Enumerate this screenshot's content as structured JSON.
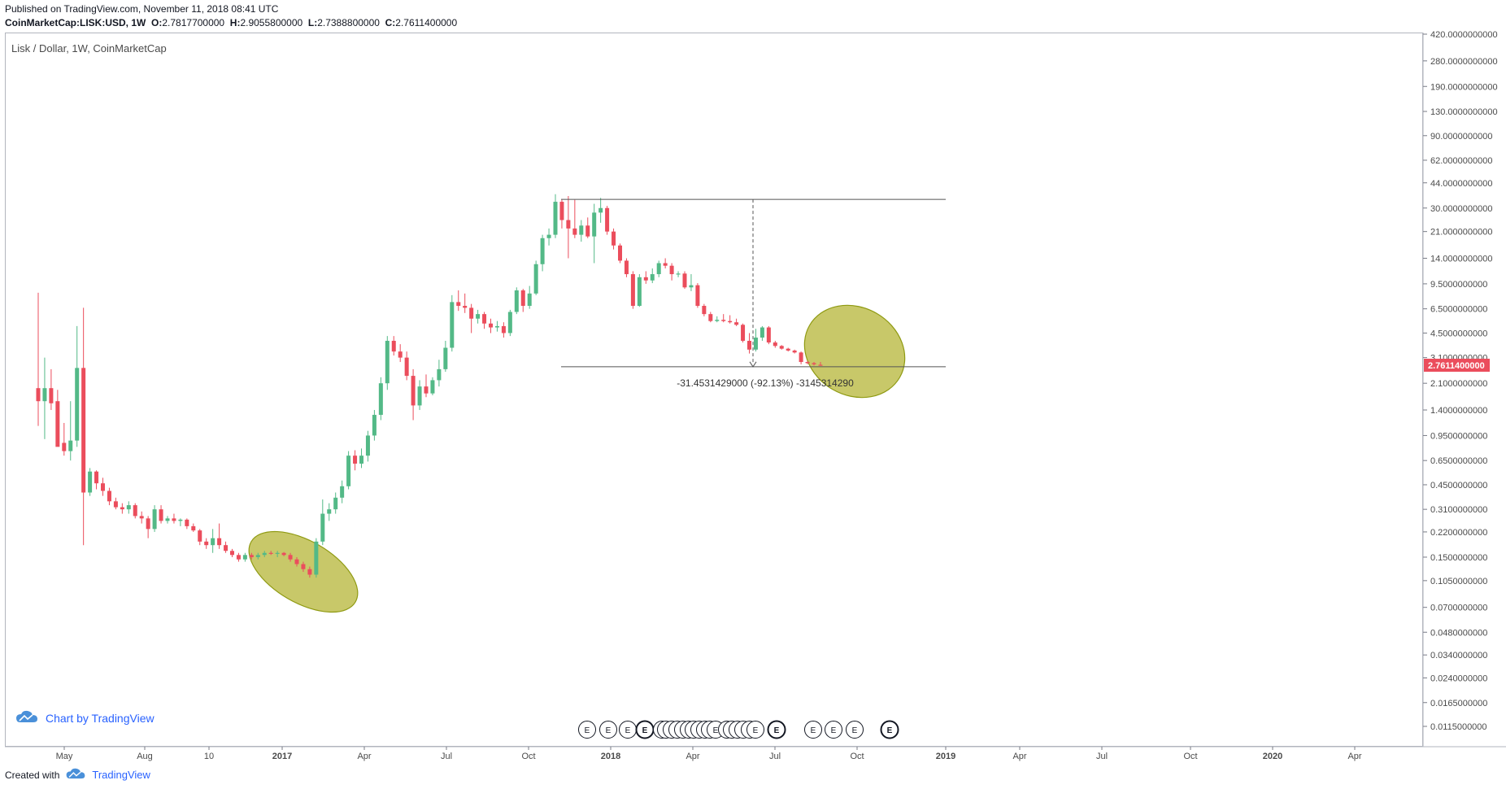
{
  "header": {
    "published": "Published on TradingView.com, November 11, 2018 08:41 UTC",
    "symbol": "CoinMarketCap:LISK:USD, 1W",
    "open_label": "O:",
    "open": "2.7817700000",
    "high_label": "H:",
    "high": "2.9055800000",
    "low_label": "L:",
    "low": "2.7388800000",
    "close_label": "C:",
    "close": "2.7611400000"
  },
  "series_label": "Lisk / Dollar, 1W, CoinMarketCap",
  "watermark": "Chart by TradingView",
  "footer": {
    "created_with": "Created with",
    "brand": "TradingView"
  },
  "colors": {
    "up": "#53b987",
    "down": "#eb4d5c",
    "highlight_fill": "#b5b637",
    "highlight_stroke": "#8f9a12",
    "price_tag": "#eb4d5c"
  },
  "chart_data": {
    "type": "candlestick",
    "title": "Lisk / Dollar, 1W, CoinMarketCap",
    "y_scale": "log",
    "y_ticks": [
      "420.0000000000",
      "280.0000000000",
      "190.0000000000",
      "130.0000000000",
      "90.0000000000",
      "62.0000000000",
      "44.0000000000",
      "30.0000000000",
      "21.0000000000",
      "14.0000000000",
      "9.5000000000",
      "6.5000000000",
      "4.5000000000",
      "3.1000000000",
      "2.1000000000",
      "1.4000000000",
      "0.9500000000",
      "0.6500000000",
      "0.4500000000",
      "0.3100000000",
      "0.2200000000",
      "0.1500000000",
      "0.1050000000",
      "0.0700000000",
      "0.0480000000",
      "0.0340000000",
      "0.0240000000",
      "0.0165000000",
      "0.0115000000"
    ],
    "x_ticks": [
      {
        "label": "May",
        "bold": false
      },
      {
        "label": "Aug",
        "bold": false
      },
      {
        "label": "10",
        "bold": false
      },
      {
        "label": "2017",
        "bold": true
      },
      {
        "label": "Apr",
        "bold": false
      },
      {
        "label": "Jul",
        "bold": false
      },
      {
        "label": "Oct",
        "bold": false
      },
      {
        "label": "2018",
        "bold": true
      },
      {
        "label": "Apr",
        "bold": false
      },
      {
        "label": "Jul",
        "bold": false
      },
      {
        "label": "Oct",
        "bold": false
      },
      {
        "label": "2019",
        "bold": true
      },
      {
        "label": "Apr",
        "bold": false
      },
      {
        "label": "Jul",
        "bold": false
      },
      {
        "label": "Oct",
        "bold": false
      },
      {
        "label": "2020",
        "bold": true
      },
      {
        "label": "Apr",
        "bold": false
      }
    ],
    "last_price": "2.7611400000",
    "measure": {
      "top_price": 34.2,
      "bottom_price": 2.7,
      "label": "-31.4531429000 (-92.13%) -3145314290"
    },
    "earnings_marker": "E",
    "candles": [
      {
        "o": 1.95,
        "h": 8.3,
        "l": 1.1,
        "c": 1.6
      },
      {
        "o": 1.6,
        "h": 3.1,
        "l": 0.9,
        "c": 1.95
      },
      {
        "o": 1.95,
        "h": 2.6,
        "l": 1.4,
        "c": 1.55
      },
      {
        "o": 1.6,
        "h": 1.9,
        "l": 0.85,
        "c": 0.8
      },
      {
        "o": 0.85,
        "h": 1.15,
        "l": 0.7,
        "c": 0.75
      },
      {
        "o": 0.75,
        "h": 1.6,
        "l": 0.65,
        "c": 0.88
      },
      {
        "o": 0.88,
        "h": 5.0,
        "l": 0.8,
        "c": 2.65
      },
      {
        "o": 2.65,
        "h": 6.6,
        "l": 0.18,
        "c": 0.4
      },
      {
        "o": 0.4,
        "h": 0.58,
        "l": 0.38,
        "c": 0.55
      },
      {
        "o": 0.55,
        "h": 0.56,
        "l": 0.42,
        "c": 0.46
      },
      {
        "o": 0.46,
        "h": 0.5,
        "l": 0.38,
        "c": 0.41
      },
      {
        "o": 0.41,
        "h": 0.43,
        "l": 0.33,
        "c": 0.35
      },
      {
        "o": 0.35,
        "h": 0.37,
        "l": 0.31,
        "c": 0.32
      },
      {
        "o": 0.32,
        "h": 0.34,
        "l": 0.29,
        "c": 0.31
      },
      {
        "o": 0.31,
        "h": 0.35,
        "l": 0.29,
        "c": 0.33
      },
      {
        "o": 0.33,
        "h": 0.34,
        "l": 0.27,
        "c": 0.28
      },
      {
        "o": 0.28,
        "h": 0.3,
        "l": 0.25,
        "c": 0.27
      },
      {
        "o": 0.27,
        "h": 0.28,
        "l": 0.2,
        "c": 0.23
      },
      {
        "o": 0.23,
        "h": 0.33,
        "l": 0.22,
        "c": 0.31
      },
      {
        "o": 0.31,
        "h": 0.33,
        "l": 0.25,
        "c": 0.26
      },
      {
        "o": 0.26,
        "h": 0.28,
        "l": 0.25,
        "c": 0.27
      },
      {
        "o": 0.27,
        "h": 0.29,
        "l": 0.25,
        "c": 0.26
      },
      {
        "o": 0.26,
        "h": 0.27,
        "l": 0.24,
        "c": 0.265
      },
      {
        "o": 0.265,
        "h": 0.27,
        "l": 0.23,
        "c": 0.24
      },
      {
        "o": 0.24,
        "h": 0.25,
        "l": 0.22,
        "c": 0.225
      },
      {
        "o": 0.225,
        "h": 0.23,
        "l": 0.18,
        "c": 0.19
      },
      {
        "o": 0.19,
        "h": 0.2,
        "l": 0.17,
        "c": 0.18
      },
      {
        "o": 0.18,
        "h": 0.23,
        "l": 0.16,
        "c": 0.2
      },
      {
        "o": 0.2,
        "h": 0.25,
        "l": 0.17,
        "c": 0.18
      },
      {
        "o": 0.18,
        "h": 0.19,
        "l": 0.16,
        "c": 0.165
      },
      {
        "o": 0.165,
        "h": 0.17,
        "l": 0.15,
        "c": 0.155
      },
      {
        "o": 0.155,
        "h": 0.16,
        "l": 0.14,
        "c": 0.145
      },
      {
        "o": 0.145,
        "h": 0.16,
        "l": 0.14,
        "c": 0.155
      },
      {
        "o": 0.155,
        "h": 0.16,
        "l": 0.145,
        "c": 0.15
      },
      {
        "o": 0.15,
        "h": 0.16,
        "l": 0.145,
        "c": 0.155
      },
      {
        "o": 0.155,
        "h": 0.165,
        "l": 0.15,
        "c": 0.16
      },
      {
        "o": 0.16,
        "h": 0.165,
        "l": 0.155,
        "c": 0.158
      },
      {
        "o": 0.158,
        "h": 0.165,
        "l": 0.15,
        "c": 0.16
      },
      {
        "o": 0.16,
        "h": 0.162,
        "l": 0.152,
        "c": 0.155
      },
      {
        "o": 0.155,
        "h": 0.16,
        "l": 0.14,
        "c": 0.145
      },
      {
        "o": 0.145,
        "h": 0.15,
        "l": 0.13,
        "c": 0.135
      },
      {
        "o": 0.135,
        "h": 0.14,
        "l": 0.12,
        "c": 0.125
      },
      {
        "o": 0.125,
        "h": 0.13,
        "l": 0.11,
        "c": 0.115
      },
      {
        "o": 0.115,
        "h": 0.2,
        "l": 0.11,
        "c": 0.19
      },
      {
        "o": 0.19,
        "h": 0.36,
        "l": 0.18,
        "c": 0.29
      },
      {
        "o": 0.29,
        "h": 0.34,
        "l": 0.26,
        "c": 0.31
      },
      {
        "o": 0.31,
        "h": 0.4,
        "l": 0.29,
        "c": 0.37
      },
      {
        "o": 0.37,
        "h": 0.48,
        "l": 0.34,
        "c": 0.44
      },
      {
        "o": 0.44,
        "h": 0.75,
        "l": 0.42,
        "c": 0.7
      },
      {
        "o": 0.7,
        "h": 0.76,
        "l": 0.56,
        "c": 0.62
      },
      {
        "o": 0.62,
        "h": 0.78,
        "l": 0.58,
        "c": 0.7
      },
      {
        "o": 0.7,
        "h": 1.02,
        "l": 0.64,
        "c": 0.95
      },
      {
        "o": 0.95,
        "h": 1.4,
        "l": 0.88,
        "c": 1.3
      },
      {
        "o": 1.3,
        "h": 2.3,
        "l": 1.2,
        "c": 2.1
      },
      {
        "o": 2.1,
        "h": 4.3,
        "l": 1.9,
        "c": 4.0
      },
      {
        "o": 4.0,
        "h": 4.3,
        "l": 3.2,
        "c": 3.4
      },
      {
        "o": 3.4,
        "h": 3.8,
        "l": 2.9,
        "c": 3.1
      },
      {
        "o": 3.1,
        "h": 3.4,
        "l": 2.2,
        "c": 2.35
      },
      {
        "o": 2.35,
        "h": 2.6,
        "l": 1.2,
        "c": 1.5
      },
      {
        "o": 1.5,
        "h": 2.2,
        "l": 1.4,
        "c": 2.0
      },
      {
        "o": 2.0,
        "h": 2.4,
        "l": 1.7,
        "c": 1.8
      },
      {
        "o": 1.8,
        "h": 2.3,
        "l": 1.75,
        "c": 2.2
      },
      {
        "o": 2.2,
        "h": 3.0,
        "l": 2.0,
        "c": 2.6
      },
      {
        "o": 2.6,
        "h": 4.0,
        "l": 2.5,
        "c": 3.6
      },
      {
        "o": 3.6,
        "h": 8.0,
        "l": 3.4,
        "c": 7.2
      },
      {
        "o": 7.2,
        "h": 8.6,
        "l": 6.3,
        "c": 6.8
      },
      {
        "o": 6.8,
        "h": 8.2,
        "l": 6.1,
        "c": 6.6
      },
      {
        "o": 6.6,
        "h": 7.0,
        "l": 4.5,
        "c": 5.6
      },
      {
        "o": 5.6,
        "h": 6.4,
        "l": 5.2,
        "c": 6.0
      },
      {
        "o": 6.0,
        "h": 6.2,
        "l": 4.8,
        "c": 5.2
      },
      {
        "o": 5.2,
        "h": 5.6,
        "l": 4.5,
        "c": 4.9
      },
      {
        "o": 4.9,
        "h": 5.4,
        "l": 4.6,
        "c": 5.0
      },
      {
        "o": 5.0,
        "h": 5.3,
        "l": 4.2,
        "c": 4.5
      },
      {
        "o": 4.5,
        "h": 6.4,
        "l": 4.3,
        "c": 6.2
      },
      {
        "o": 6.2,
        "h": 9.0,
        "l": 6.0,
        "c": 8.6
      },
      {
        "o": 8.6,
        "h": 8.8,
        "l": 6.2,
        "c": 6.8
      },
      {
        "o": 6.8,
        "h": 9.2,
        "l": 6.5,
        "c": 8.2
      },
      {
        "o": 8.2,
        "h": 13.5,
        "l": 8.0,
        "c": 12.8
      },
      {
        "o": 12.8,
        "h": 20.0,
        "l": 11.5,
        "c": 19.0
      },
      {
        "o": 19.0,
        "h": 22.0,
        "l": 17.0,
        "c": 20.0
      },
      {
        "o": 20.0,
        "h": 37.0,
        "l": 19.0,
        "c": 33.0
      },
      {
        "o": 33.0,
        "h": 34.0,
        "l": 22.0,
        "c": 25.0
      },
      {
        "o": 25.0,
        "h": 36.0,
        "l": 14.0,
        "c": 22.0
      },
      {
        "o": 22.0,
        "h": 34.0,
        "l": 19.0,
        "c": 20.0
      },
      {
        "o": 20.0,
        "h": 25.0,
        "l": 18.0,
        "c": 23.0
      },
      {
        "o": 23.0,
        "h": 26.0,
        "l": 19.0,
        "c": 19.5
      },
      {
        "o": 19.5,
        "h": 32.0,
        "l": 13.0,
        "c": 28.0
      },
      {
        "o": 28.0,
        "h": 35.0,
        "l": 24.0,
        "c": 30.0
      },
      {
        "o": 30.0,
        "h": 31.0,
        "l": 20.0,
        "c": 21.0
      },
      {
        "o": 21.0,
        "h": 22.0,
        "l": 16.0,
        "c": 17.0
      },
      {
        "o": 17.0,
        "h": 17.5,
        "l": 13.0,
        "c": 13.5
      },
      {
        "o": 13.5,
        "h": 14.0,
        "l": 10.5,
        "c": 11.0
      },
      {
        "o": 11.0,
        "h": 11.5,
        "l": 6.5,
        "c": 6.8
      },
      {
        "o": 6.8,
        "h": 11.0,
        "l": 6.7,
        "c": 10.5
      },
      {
        "o": 10.5,
        "h": 11.5,
        "l": 9.5,
        "c": 10.0
      },
      {
        "o": 10.0,
        "h": 12.0,
        "l": 9.6,
        "c": 11.0
      },
      {
        "o": 11.0,
        "h": 13.5,
        "l": 10.5,
        "c": 13.0
      },
      {
        "o": 13.0,
        "h": 14.0,
        "l": 12.0,
        "c": 12.5
      },
      {
        "o": 12.5,
        "h": 13.0,
        "l": 10.0,
        "c": 11.0
      },
      {
        "o": 11.0,
        "h": 11.5,
        "l": 10.5,
        "c": 11.1
      },
      {
        "o": 11.1,
        "h": 11.5,
        "l": 8.8,
        "c": 9.0
      },
      {
        "o": 9.0,
        "h": 11.0,
        "l": 8.5,
        "c": 9.3
      },
      {
        "o": 9.3,
        "h": 9.6,
        "l": 6.6,
        "c": 6.8
      },
      {
        "o": 6.8,
        "h": 7.0,
        "l": 5.8,
        "c": 6.0
      },
      {
        "o": 6.0,
        "h": 6.2,
        "l": 5.3,
        "c": 5.4
      },
      {
        "o": 5.4,
        "h": 5.8,
        "l": 5.3,
        "c": 5.5
      },
      {
        "o": 5.5,
        "h": 6.0,
        "l": 5.3,
        "c": 5.4
      },
      {
        "o": 5.4,
        "h": 5.9,
        "l": 5.2,
        "c": 5.3
      },
      {
        "o": 5.3,
        "h": 5.6,
        "l": 5.0,
        "c": 5.1
      },
      {
        "o": 5.1,
        "h": 5.2,
        "l": 3.9,
        "c": 4.0
      },
      {
        "o": 4.0,
        "h": 4.5,
        "l": 3.3,
        "c": 3.5
      },
      {
        "o": 3.5,
        "h": 4.8,
        "l": 3.4,
        "c": 4.2
      },
      {
        "o": 4.2,
        "h": 5.0,
        "l": 4.0,
        "c": 4.9
      },
      {
        "o": 4.9,
        "h": 5.0,
        "l": 3.8,
        "c": 3.9
      },
      {
        "o": 3.9,
        "h": 4.0,
        "l": 3.6,
        "c": 3.7
      },
      {
        "o": 3.7,
        "h": 3.75,
        "l": 3.5,
        "c": 3.55
      },
      {
        "o": 3.55,
        "h": 3.6,
        "l": 3.4,
        "c": 3.45
      },
      {
        "o": 3.45,
        "h": 3.5,
        "l": 3.3,
        "c": 3.35
      },
      {
        "o": 3.35,
        "h": 3.4,
        "l": 2.8,
        "c": 2.9
      },
      {
        "o": 2.9,
        "h": 2.95,
        "l": 2.8,
        "c": 2.85
      },
      {
        "o": 2.85,
        "h": 2.9,
        "l": 2.75,
        "c": 2.8
      },
      {
        "o": 2.78,
        "h": 2.9,
        "l": 2.74,
        "c": 2.76
      }
    ]
  }
}
